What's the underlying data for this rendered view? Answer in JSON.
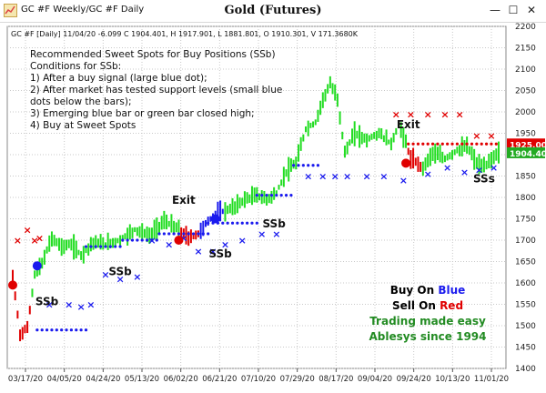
{
  "window": {
    "title": "GC #F Weekly/GC #F Daily",
    "minimize": "—",
    "maximize": "☐",
    "close": "✕"
  },
  "chart_data": {
    "type": "candlestick",
    "title": "Gold (Futures)",
    "info_line": "GC #F [Daily] 11/04/20 -6.099 C 1904.401, H 1917.901, L 1881.801, O 1910.301, V 171.3680K",
    "ylim": [
      1400,
      2200
    ],
    "y_ticks": [
      1400,
      1450,
      1500,
      1550,
      1600,
      1650,
      1700,
      1750,
      1800,
      1850,
      1900,
      1950,
      2000,
      2050,
      2100,
      2150,
      2200
    ],
    "x_ticks": [
      "03/17/20",
      "04/05/20",
      "04/24/20",
      "05/13/20",
      "06/02/20",
      "06/21/20",
      "07/10/20",
      "07/29/20",
      "08/17/20",
      "09/04/20",
      "09/24/20",
      "10/13/20",
      "11/01/20"
    ],
    "grid": true,
    "price_labels": [
      {
        "text": "1925.00",
        "value": 1925,
        "color": "#e00000"
      },
      {
        "text": "1904.40",
        "value": 1904.4,
        "color": "#22aa22"
      }
    ],
    "notes": [
      "Recommended Sweet Spots for Buy Positions (SSb)",
      "Conditions for SSb:",
      "1) After a buy signal (large blue dot);",
      "2) After market has tested support levels (small blue",
      "    dots below the bars);",
      "3) Emerging blue bar or green bar closed high;",
      "4) Buy at Sweet Spots"
    ],
    "annotations": [
      {
        "text": "SSb",
        "bar": 14,
        "value": 1548
      },
      {
        "text": "SSb",
        "bar": 44,
        "value": 1618
      },
      {
        "text": "Exit",
        "bar": 70,
        "value": 1785
      },
      {
        "text": "SSb",
        "bar": 85,
        "value": 1660
      },
      {
        "text": "SSb",
        "bar": 107,
        "value": 1730
      },
      {
        "text": "Exit",
        "bar": 162,
        "value": 1962
      },
      {
        "text": "SSs",
        "bar": 193,
        "value": 1835
      }
    ],
    "legend": [
      {
        "prefix": "Buy On ",
        "word": "Blue",
        "word_color": "#1a1aee",
        "color": "#000000"
      },
      {
        "prefix": "Sell On ",
        "word": "Red",
        "word_color": "#e00000",
        "color": "#000000"
      },
      {
        "prefix": "Trading made easy",
        "word": "",
        "word_color": "#228b22",
        "color": "#228b22"
      },
      {
        "prefix": "Ablesys since 1994",
        "word": "",
        "word_color": "#228b22",
        "color": "#228b22"
      }
    ],
    "bars_count": 200,
    "path": [
      [
        0,
        1615
      ],
      [
        3,
        1480
      ],
      [
        6,
        1495
      ],
      [
        9,
        1620
      ],
      [
        12,
        1645
      ],
      [
        16,
        1705
      ],
      [
        20,
        1685
      ],
      [
        24,
        1690
      ],
      [
        28,
        1665
      ],
      [
        33,
        1695
      ],
      [
        38,
        1690
      ],
      [
        44,
        1700
      ],
      [
        50,
        1725
      ],
      [
        56,
        1710
      ],
      [
        62,
        1745
      ],
      [
        68,
        1725
      ],
      [
        72,
        1705
      ],
      [
        76,
        1715
      ],
      [
        80,
        1745
      ],
      [
        85,
        1765
      ],
      [
        90,
        1775
      ],
      [
        95,
        1795
      ],
      [
        100,
        1805
      ],
      [
        104,
        1795
      ],
      [
        108,
        1810
      ],
      [
        112,
        1860
      ],
      [
        116,
        1880
      ],
      [
        120,
        1960
      ],
      [
        124,
        1975
      ],
      [
        127,
        2030
      ],
      [
        130,
        2065
      ],
      [
        133,
        2030
      ],
      [
        136,
        1905
      ],
      [
        140,
        1950
      ],
      [
        145,
        1935
      ],
      [
        150,
        1950
      ],
      [
        155,
        1925
      ],
      [
        158,
        1970
      ],
      [
        160,
        1945
      ],
      [
        163,
        1890
      ],
      [
        168,
        1870
      ],
      [
        172,
        1905
      ],
      [
        177,
        1890
      ],
      [
        182,
        1910
      ],
      [
        186,
        1920
      ],
      [
        190,
        1880
      ],
      [
        193,
        1870
      ],
      [
        196,
        1890
      ],
      [
        199,
        1905
      ]
    ],
    "colors": [
      {
        "from": 0,
        "to": 7,
        "color": "red"
      },
      {
        "from": 8,
        "to": 68,
        "color": "green"
      },
      {
        "from": 69,
        "to": 76,
        "color": "red"
      },
      {
        "from": 77,
        "to": 86,
        "color": "blue"
      },
      {
        "from": 87,
        "to": 161,
        "color": "green"
      },
      {
        "from": 162,
        "to": 167,
        "color": "red"
      },
      {
        "from": 168,
        "to": 199,
        "color": "green"
      }
    ],
    "signals": [
      {
        "type": "sell",
        "bar": 0,
        "value": 1595
      },
      {
        "type": "buy",
        "bar": 10,
        "value": 1640
      },
      {
        "type": "sell",
        "bar": 68,
        "value": 1700
      },
      {
        "type": "buy",
        "bar": 83,
        "value": 1750
      },
      {
        "type": "sell",
        "bar": 161,
        "value": 1880
      }
    ],
    "markers": [
      {
        "kind": "red-x",
        "bars": [
          2,
          6,
          9,
          11
        ],
        "values": [
          1700,
          1725,
          1700,
          1705
        ]
      },
      {
        "kind": "blue-x",
        "bars": [
          15,
          23,
          28,
          32,
          38,
          44,
          51,
          57,
          64,
          70,
          76,
          82,
          87,
          94,
          102,
          108,
          121,
          127,
          132,
          137,
          145,
          152,
          160,
          170,
          178,
          185,
          191,
          197
        ],
        "values": [
          1550,
          1550,
          1545,
          1550,
          1620,
          1610,
          1615,
          1700,
          1690,
          1705,
          1675,
          1675,
          1690,
          1700,
          1715,
          1715,
          1850,
          1850,
          1850,
          1850,
          1850,
          1850,
          1840,
          1855,
          1870,
          1860,
          1865,
          1870
        ]
      },
      {
        "kind": "red-x",
        "bars": [
          157,
          163,
          170,
          177,
          183,
          190,
          196
        ],
        "values": [
          1995,
          1995,
          1995,
          1995,
          1995,
          1945,
          1945
        ]
      }
    ],
    "support_dots": [
      {
        "color": "#1a1aee",
        "from": 10,
        "to": 30,
        "value": 1490
      },
      {
        "color": "#1a1aee",
        "from": 30,
        "to": 45,
        "value": 1685
      },
      {
        "color": "#1a1aee",
        "from": 45,
        "to": 60,
        "value": 1700
      },
      {
        "color": "#1a1aee",
        "from": 60,
        "to": 80,
        "value": 1715
      },
      {
        "color": "#1a1aee",
        "from": 80,
        "to": 100,
        "value": 1740
      },
      {
        "color": "#1a1aee",
        "from": 100,
        "to": 115,
        "value": 1805
      },
      {
        "color": "#1a1aee",
        "from": 115,
        "to": 125,
        "value": 1875
      },
      {
        "color": "#e00000",
        "from": 162,
        "to": 199,
        "value": 1925
      }
    ]
  }
}
